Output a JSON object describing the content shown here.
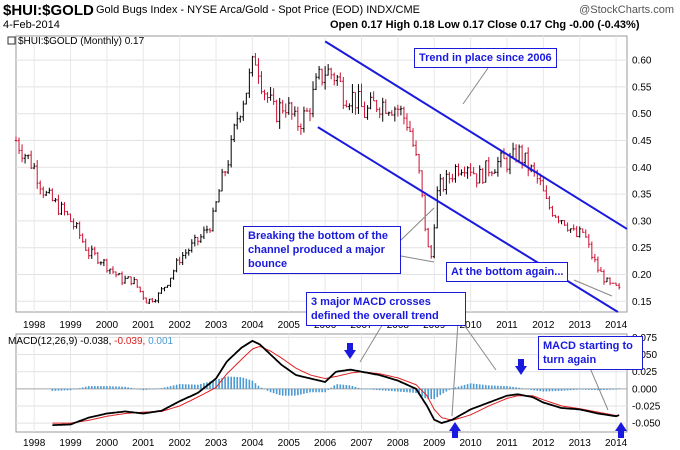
{
  "header": {
    "symbol": "$HUI:$GOLD",
    "description": "Gold Bugs Index - NYSE Arca/Gold - Spot Price (EOD) INDX/CME",
    "brand": "@StockCharts.com",
    "date": "4-Feb-2014",
    "open_label": "Open",
    "open": "0.17",
    "high_label": "High",
    "high": "0.18",
    "low_label": "Low",
    "low": "0.17",
    "close_label": "Close",
    "close": "0.17",
    "chg_label": "Chg",
    "chg": "-0.00 (-0.43%)"
  },
  "colors": {
    "up": "#000000",
    "down": "#cc1133",
    "annotation": "#1a1adf",
    "macd": "#000000",
    "signal": "#e02020",
    "histogram": "#4a9ad4"
  },
  "chart_data": [
    {
      "type": "line",
      "title": "$HUI:$GOLD (Monthly) 0.17",
      "legend_label": "$HUI:$GOLD (Monthly) 0.17",
      "x_ticks": [
        "1998",
        "1999",
        "2000",
        "2001",
        "2002",
        "2003",
        "2004",
        "2005",
        "2006",
        "2007",
        "2008",
        "2009",
        "2010",
        "2011",
        "2012",
        "2013",
        "2014"
      ],
      "y_ticks": [
        "0.15",
        "0.20",
        "0.25",
        "0.30",
        "0.35",
        "0.40",
        "0.45",
        "0.50",
        "0.55",
        "0.60"
      ],
      "ylim": [
        0.13,
        0.645
      ],
      "xlim": [
        1997.5,
        2014.3
      ],
      "series": [
        {
          "x": [
            1997.5,
            1997.8,
            1998.0,
            1998.3,
            1998.6,
            1998.9,
            1999.2,
            1999.5,
            1999.8,
            2000.1,
            2000.4,
            2000.7,
            2000.9,
            2001.1,
            2001.4,
            2001.7,
            2002.0,
            2002.3,
            2002.6,
            2002.9,
            2003.1,
            2003.4,
            2003.6,
            2003.9,
            2004.1,
            2004.3,
            2004.6,
            2004.9,
            2005.2,
            2005.5,
            2005.8,
            2006.0,
            2006.3,
            2006.5,
            2006.8,
            2007.1,
            2007.4,
            2007.7,
            2008.0,
            2008.3,
            2008.6,
            2008.8,
            2008.9,
            2009.0,
            2009.1,
            2009.3,
            2009.6,
            2009.9,
            2010.2,
            2010.5,
            2010.8,
            2011.1,
            2011.3,
            2011.6,
            2011.9,
            2012.1,
            2012.4,
            2012.6,
            2012.9,
            2013.1,
            2013.3,
            2013.5,
            2013.8,
            2014.0,
            2014.1
          ],
          "values": [
            0.45,
            0.42,
            0.4,
            0.35,
            0.33,
            0.31,
            0.28,
            0.24,
            0.23,
            0.21,
            0.19,
            0.19,
            0.17,
            0.15,
            0.16,
            0.19,
            0.23,
            0.25,
            0.27,
            0.3,
            0.36,
            0.43,
            0.5,
            0.56,
            0.61,
            0.55,
            0.5,
            0.52,
            0.48,
            0.5,
            0.56,
            0.58,
            0.57,
            0.54,
            0.53,
            0.5,
            0.52,
            0.52,
            0.51,
            0.48,
            0.38,
            0.26,
            0.22,
            0.3,
            0.36,
            0.37,
            0.4,
            0.41,
            0.38,
            0.4,
            0.41,
            0.41,
            0.43,
            0.4,
            0.37,
            0.33,
            0.31,
            0.3,
            0.27,
            0.28,
            0.24,
            0.21,
            0.18,
            0.175,
            0.17
          ]
        }
      ],
      "trend_lines": [
        {
          "from": [
            2006.0,
            0.635
          ],
          "to": [
            2014.3,
            0.285
          ]
        },
        {
          "from": [
            2005.8,
            0.475
          ],
          "to": [
            2014.05,
            0.13
          ]
        }
      ],
      "annotations": [
        "Trend in place since 2006",
        "Breaking the bottom of the channel produced a major bounce",
        "At the bottom again..."
      ]
    },
    {
      "type": "line",
      "title": "MACD(12,26,9) -0.038, -0.039, 0.001",
      "legend_label": "MACD(12,26,9)",
      "legend_values": [
        "-0.038",
        "-0.039",
        "0.001"
      ],
      "x_ticks": [
        "1998",
        "1999",
        "2000",
        "2001",
        "2002",
        "2003",
        "2004",
        "2005",
        "2006",
        "2007",
        "2008",
        "2009",
        "2010",
        "2011",
        "2012",
        "2013",
        "2014"
      ],
      "y_ticks": [
        "0.075",
        "0.050",
        "0.025",
        "0.000",
        "-0.025",
        "-0.050"
      ],
      "ylim": [
        -0.063,
        0.08
      ],
      "xlim": [
        1997.5,
        2014.3
      ],
      "series": [
        {
          "name": "MACD",
          "x": [
            1998.5,
            1999.0,
            1999.5,
            2000.0,
            2000.5,
            2001.0,
            2001.5,
            2002.0,
            2002.5,
            2003.0,
            2003.3,
            2003.7,
            2004.0,
            2004.2,
            2004.5,
            2004.8,
            2005.2,
            2005.6,
            2006.0,
            2006.3,
            2006.7,
            2007.0,
            2007.5,
            2008.0,
            2008.5,
            2008.8,
            2009.0,
            2009.2,
            2009.5,
            2010.0,
            2010.5,
            2011.0,
            2011.3,
            2011.7,
            2012.0,
            2012.5,
            2013.0,
            2013.5,
            2014.0,
            2014.1
          ],
          "values": [
            -0.053,
            -0.052,
            -0.042,
            -0.036,
            -0.033,
            -0.036,
            -0.032,
            -0.018,
            -0.006,
            0.015,
            0.04,
            0.06,
            0.07,
            0.065,
            0.05,
            0.035,
            0.02,
            0.015,
            0.01,
            0.025,
            0.028,
            0.025,
            0.02,
            0.012,
            0.0,
            -0.025,
            -0.045,
            -0.05,
            -0.045,
            -0.03,
            -0.02,
            -0.01,
            -0.008,
            -0.012,
            -0.02,
            -0.028,
            -0.03,
            -0.036,
            -0.04,
            -0.038
          ]
        },
        {
          "name": "Signal",
          "x": [
            1998.5,
            1999.0,
            1999.5,
            2000.0,
            2000.5,
            2001.0,
            2001.5,
            2002.0,
            2002.5,
            2003.0,
            2003.3,
            2003.7,
            2004.0,
            2004.2,
            2004.5,
            2004.8,
            2005.2,
            2005.6,
            2006.0,
            2006.3,
            2006.7,
            2007.0,
            2007.5,
            2008.0,
            2008.5,
            2008.8,
            2009.0,
            2009.2,
            2009.5,
            2010.0,
            2010.5,
            2011.0,
            2011.3,
            2011.7,
            2012.0,
            2012.5,
            2013.0,
            2013.5,
            2014.0,
            2014.1
          ],
          "values": [
            -0.05,
            -0.05,
            -0.046,
            -0.04,
            -0.036,
            -0.034,
            -0.033,
            -0.025,
            -0.012,
            0.002,
            0.022,
            0.043,
            0.058,
            0.062,
            0.055,
            0.045,
            0.03,
            0.02,
            0.015,
            0.018,
            0.023,
            0.025,
            0.022,
            0.016,
            0.006,
            -0.01,
            -0.03,
            -0.042,
            -0.046,
            -0.038,
            -0.025,
            -0.014,
            -0.01,
            -0.01,
            -0.016,
            -0.025,
            -0.029,
            -0.034,
            -0.039,
            -0.039
          ]
        },
        {
          "name": "Histogram",
          "x": [
            1998.5,
            1999.0,
            1999.5,
            2000.0,
            2000.5,
            2001.0,
            2001.5,
            2002.0,
            2002.5,
            2003.0,
            2003.3,
            2003.7,
            2004.0,
            2004.2,
            2004.5,
            2004.8,
            2005.2,
            2005.6,
            2006.0,
            2006.3,
            2006.7,
            2007.0,
            2007.5,
            2008.0,
            2008.5,
            2008.8,
            2009.0,
            2009.2,
            2009.5,
            2010.0,
            2010.5,
            2011.0,
            2011.3,
            2011.7,
            2012.0,
            2012.5,
            2013.0,
            2013.5,
            2014.0,
            2014.1
          ],
          "values": [
            -0.003,
            -0.002,
            0.004,
            0.004,
            0.003,
            -0.002,
            0.001,
            0.007,
            0.006,
            0.013,
            0.018,
            0.017,
            0.012,
            0.003,
            -0.005,
            -0.01,
            -0.01,
            -0.005,
            -0.005,
            0.007,
            0.005,
            0.0,
            -0.002,
            -0.004,
            -0.006,
            -0.015,
            -0.015,
            -0.008,
            0.001,
            0.008,
            0.005,
            0.004,
            0.002,
            -0.002,
            -0.004,
            -0.003,
            -0.001,
            -0.002,
            -0.001,
            0.001
          ]
        }
      ],
      "annotations": [
        "3 major MACD crosses defined the overall trend",
        "MACD starting to turn again"
      ]
    }
  ]
}
